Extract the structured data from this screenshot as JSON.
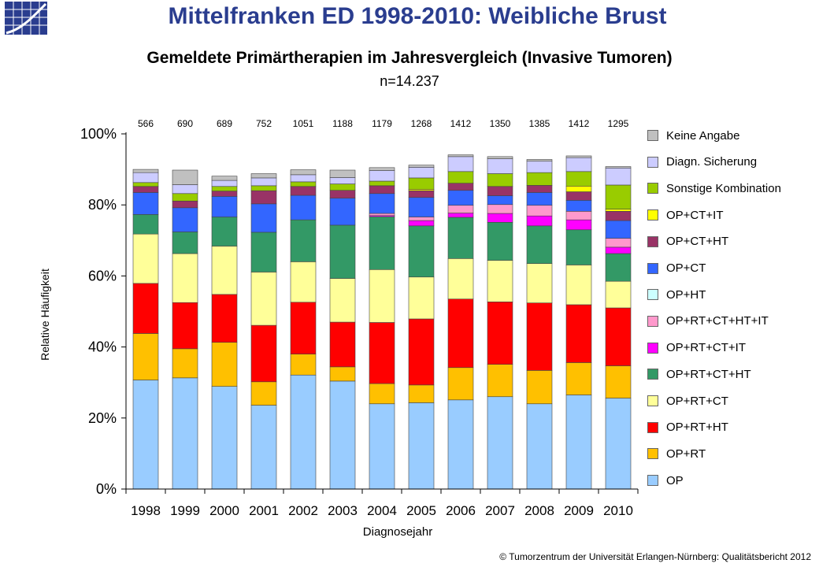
{
  "header": {
    "title": "Mittelfranken ED 1998-2010: Weibliche Brust",
    "logo_icon": "growth-curve-logo-icon"
  },
  "footer": {
    "text": "© Tumorzentrum  der Universität Erlangen-Nürnberg:  Qualitätsbericht 2012"
  },
  "chart_data": {
    "type": "bar",
    "stacked": true,
    "normalized": true,
    "title": "Gemeldete Primärtherapien im Jahresvergleich (Invasive Tumoren)",
    "subtitle": "n=14.237",
    "xlabel": "Diagnosejahr",
    "ylabel": "Relative Häufigkeit",
    "ylim": [
      0,
      100
    ],
    "yticks": [
      "0%",
      "20%",
      "40%",
      "60%",
      "80%",
      "100%"
    ],
    "grid": false,
    "legend_position": "right",
    "categories": [
      "1998",
      "1999",
      "2000",
      "2001",
      "2002",
      "2003",
      "2004",
      "2005",
      "2006",
      "2007",
      "2008",
      "2009",
      "2010"
    ],
    "counts": [
      "566",
      "690",
      "689",
      "752",
      "1051",
      "1188",
      "1179",
      "1268",
      "1412",
      "1350",
      "1385",
      "1412",
      "1295"
    ],
    "series": [
      {
        "name": "OP",
        "color": "#99ccff",
        "values": [
          30.7,
          31.3,
          28.9,
          23.6,
          32.1,
          30.4,
          24.0,
          24.3,
          25.1,
          26.0,
          24.0,
          26.5,
          25.6
        ]
      },
      {
        "name": "OP+RT",
        "color": "#ffc000",
        "values": [
          13.1,
          8.2,
          12.4,
          6.6,
          5.9,
          4.0,
          5.7,
          5.0,
          9.1,
          9.1,
          9.4,
          9.1,
          9.1
        ]
      },
      {
        "name": "OP+RT+HT",
        "color": "#ff0000",
        "values": [
          14.1,
          13.0,
          13.5,
          15.9,
          14.6,
          12.6,
          17.2,
          18.6,
          19.3,
          17.6,
          19.0,
          16.3,
          16.3
        ]
      },
      {
        "name": "OP+RT+CT",
        "color": "#ffff99",
        "values": [
          13.9,
          13.8,
          13.6,
          15.0,
          11.4,
          12.3,
          14.9,
          11.8,
          11.4,
          11.7,
          11.1,
          11.2,
          7.5
        ]
      },
      {
        "name": "OP+RT+CT+HT",
        "color": "#339966",
        "values": [
          5.5,
          6.1,
          8.2,
          11.2,
          11.8,
          15.0,
          14.9,
          14.4,
          11.6,
          10.7,
          10.6,
          9.9,
          7.8
        ]
      },
      {
        "name": "OP+RT+CT+IT",
        "color": "#ff00ff",
        "values": [
          0,
          0,
          0,
          0,
          0,
          0,
          0.3,
          1.5,
          1.2,
          2.5,
          2.8,
          2.8,
          1.8
        ]
      },
      {
        "name": "OP+RT+CT+HT+IT",
        "color": "#ff99cc",
        "values": [
          0,
          0,
          0,
          0,
          0,
          0,
          0.6,
          1.0,
          2.2,
          2.5,
          3.0,
          2.4,
          2.5
        ]
      },
      {
        "name": "OP+HT",
        "color": "#ccffff",
        "values": [
          0,
          0,
          0,
          0,
          0,
          0,
          0,
          0,
          0,
          0,
          0,
          0,
          0
        ]
      },
      {
        "name": "OP+CT",
        "color": "#3366ff",
        "values": [
          6.2,
          6.8,
          5.8,
          8.0,
          6.9,
          7.6,
          5.6,
          5.5,
          4.2,
          2.5,
          3.6,
          3.1,
          5.0
        ]
      },
      {
        "name": "OP+CT+HT",
        "color": "#993366",
        "values": [
          1.7,
          1.9,
          1.5,
          3.7,
          2.5,
          2.2,
          2.2,
          1.9,
          2.0,
          2.6,
          2.0,
          2.4,
          2.6
        ]
      },
      {
        "name": "OP+CT+IT",
        "color": "#ffff00",
        "values": [
          0,
          0,
          0,
          0,
          0,
          0,
          0,
          0.4,
          0,
          0,
          0,
          1.6,
          0.6
        ]
      },
      {
        "name": "Sonstige Kombination",
        "color": "#99cc00",
        "values": [
          1.1,
          2.1,
          1.3,
          1.4,
          1.3,
          1.8,
          1.3,
          3.2,
          3.3,
          3.6,
          3.6,
          4.1,
          6.8
        ]
      },
      {
        "name": "Diagn. Sicherung",
        "color": "#ccccff",
        "values": [
          2.8,
          2.5,
          1.7,
          2.2,
          2.0,
          1.8,
          3.0,
          3.0,
          4.2,
          4.2,
          3.2,
          3.9,
          4.8
        ]
      },
      {
        "name": "Keine Angabe",
        "color": "#c0c0c0",
        "values": [
          0.9,
          4.1,
          1.2,
          1.2,
          1.4,
          2.1,
          0.8,
          0.6,
          0.5,
          0.6,
          0.5,
          0.5,
          0.4
        ]
      }
    ],
    "legend_order": [
      "Keine Angabe",
      "Diagn. Sicherung",
      "Sonstige Kombination",
      "OP+CT+IT",
      "OP+CT+HT",
      "OP+CT",
      "OP+HT",
      "OP+RT+CT+HT+IT",
      "OP+RT+CT+IT",
      "OP+RT+CT+HT",
      "OP+RT+CT",
      "OP+RT+HT",
      "OP+RT",
      "OP"
    ]
  }
}
